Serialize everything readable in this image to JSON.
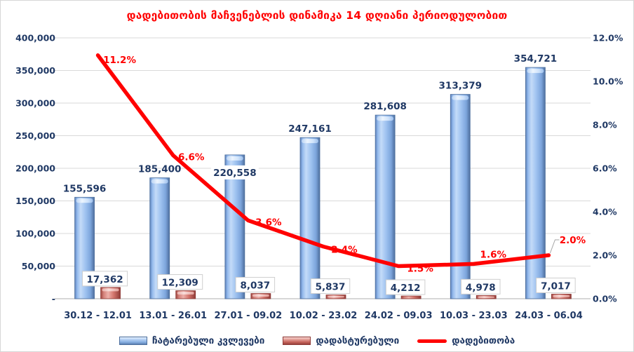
{
  "chart_data": {
    "type": "bar",
    "subtype": "combo-bar-line",
    "title": "დადებითობის მაჩვენებლის დინამიკა 14 დღიანი პერიოდულობით",
    "categories": [
      "30.12 - 12.01",
      "13.01 - 26.01",
      "27.01 - 09.02",
      "10.02 - 23.02",
      "24.02 - 09.03",
      "10.03 - 23.03",
      "24.03 - 06.04"
    ],
    "series": [
      {
        "name": "ჩატარებული კვლევები",
        "type": "bar",
        "axis": "left",
        "values": [
          155596,
          185400,
          220558,
          247161,
          281608,
          313379,
          354721
        ],
        "labels": [
          "155,596",
          "185,400",
          "220,558",
          "247,161",
          "281,608",
          "313,379",
          "354,721"
        ]
      },
      {
        "name": "დადასტურებული",
        "type": "bar",
        "axis": "left",
        "values": [
          17362,
          12309,
          8037,
          5837,
          4212,
          4978,
          7017
        ],
        "labels": [
          "17,362",
          "12,309",
          "8,037",
          "5,837",
          "4,212",
          "4,978",
          "7,017"
        ]
      },
      {
        "name": "დადებითობა",
        "type": "line",
        "axis": "right",
        "values": [
          11.2,
          6.6,
          3.6,
          2.4,
          1.5,
          1.6,
          2.0
        ],
        "labels": [
          "11.2%",
          "6.6%",
          "3.6%",
          "2.4%",
          "1.5%",
          "1.6%",
          "2.0%"
        ]
      }
    ],
    "left_axis": {
      "min": 0,
      "max": 400000,
      "step": 50000,
      "ticks": [
        "400,000",
        "350,000",
        "300,000",
        "250,000",
        "200,000",
        "150,000",
        "100,000",
        "50,000",
        "-"
      ]
    },
    "right_axis": {
      "min": 0,
      "max": 12,
      "step": 2,
      "ticks": [
        "12.0%",
        "10.0%",
        "8.0%",
        "6.0%",
        "4.0%",
        "2.0%",
        "0.0%"
      ]
    },
    "grid": true,
    "legend_position": "bottom",
    "colors": {
      "title": "#FF0000",
      "axis_text": "#1F3864",
      "line": "#FF0000",
      "gridline": "#D9D9D9",
      "axis_line": "#BFBFBF",
      "bar_blue": "#8FB4E8",
      "bar_red": "#D9736C"
    }
  }
}
